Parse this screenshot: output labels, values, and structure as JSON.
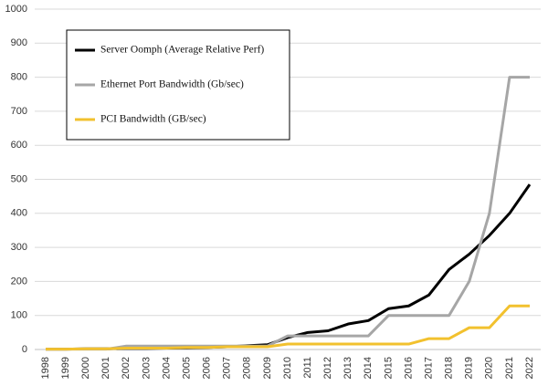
{
  "chart_data": {
    "type": "line",
    "categories": [
      "1998",
      "1999",
      "2000",
      "2001",
      "2002",
      "2003",
      "2004",
      "2005",
      "2006",
      "2007",
      "2008",
      "2009",
      "2010",
      "2011",
      "2012",
      "2013",
      "2014",
      "2015",
      "2016",
      "2017",
      "2018",
      "2019",
      "2020",
      "2021",
      "2022"
    ],
    "series": [
      {
        "name": "Server Oomph (Average Relative Perf)",
        "color": "#000000",
        "values": [
          1,
          1,
          2,
          2,
          3,
          3,
          4,
          5,
          6,
          8,
          11,
          14,
          35,
          50,
          55,
          75,
          85,
          120,
          128,
          160,
          235,
          280,
          335,
          400,
          485
        ]
      },
      {
        "name": "Ethernet Port Bandwidth (Gb/sec)",
        "color": "#a6a6a6",
        "values": [
          1,
          1,
          1,
          1,
          10,
          10,
          10,
          10,
          10,
          10,
          10,
          10,
          40,
          40,
          40,
          40,
          40,
          100,
          100,
          100,
          100,
          200,
          400,
          800,
          800
        ]
      },
      {
        "name": "PCI Bandwidth (GB/sec)",
        "color": "#f2c12e",
        "values": [
          1,
          1,
          2,
          2,
          4,
          4,
          4,
          6,
          6,
          8,
          8,
          8,
          16,
          16,
          16,
          16,
          16,
          16,
          16,
          32,
          32,
          64,
          64,
          128,
          128
        ]
      }
    ],
    "ylim": [
      0,
      1000
    ],
    "yticks": [
      0,
      100,
      200,
      300,
      400,
      500,
      600,
      700,
      800,
      900,
      1000
    ],
    "grid": true
  }
}
